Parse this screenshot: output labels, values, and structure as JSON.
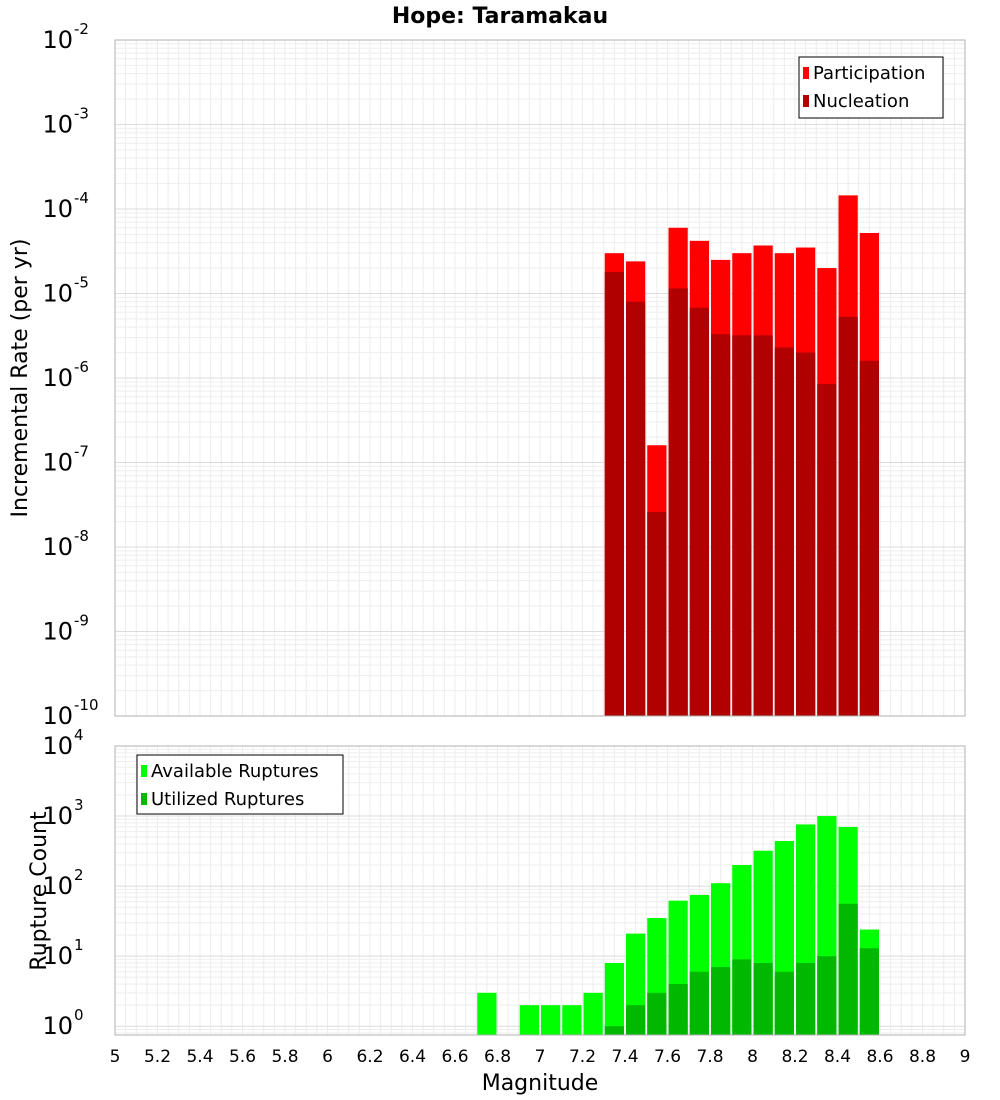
{
  "chart_data": [
    {
      "type": "bar",
      "title": "Hope: Taramakau",
      "xlabel": "",
      "ylabel": "Incremental Rate (per yr)",
      "yscale": "log",
      "xlim": [
        5,
        9
      ],
      "ylim": [
        1e-10,
        0.01
      ],
      "y_ticks": [
        {
          "base": "10",
          "exp": "-10"
        },
        {
          "base": "10",
          "exp": "-9"
        },
        {
          "base": "10",
          "exp": "-8"
        },
        {
          "base": "10",
          "exp": "-7"
        },
        {
          "base": "10",
          "exp": "-6"
        },
        {
          "base": "10",
          "exp": "-5"
        },
        {
          "base": "10",
          "exp": "-4"
        },
        {
          "base": "10",
          "exp": "-3"
        },
        {
          "base": "10",
          "exp": "-2"
        }
      ],
      "legend_position": "top-right",
      "grid": true,
      "x": [
        7.35,
        7.45,
        7.55,
        7.65,
        7.75,
        7.85,
        7.95,
        8.05,
        8.15,
        8.25,
        8.35,
        8.45,
        8.55
      ],
      "series": [
        {
          "name": "Participation",
          "color": "#ff0000",
          "values": [
            3e-05,
            2.4e-05,
            1.6e-07,
            6e-05,
            4.2e-05,
            2.5e-05,
            3e-05,
            3.7e-05,
            3e-05,
            3.5e-05,
            2e-05,
            0.000145,
            5.2e-05
          ]
        },
        {
          "name": "Nucleation",
          "color": "#b00000",
          "values": [
            1.8e-05,
            8e-06,
            2.6e-08,
            1.15e-05,
            6.8e-06,
            3.3e-06,
            3.2e-06,
            3.2e-06,
            2.3e-06,
            2e-06,
            8.5e-07,
            5.3e-06,
            1.6e-06
          ]
        }
      ]
    },
    {
      "type": "bar",
      "title": "",
      "xlabel": "Magnitude",
      "ylabel": "Rupture Count",
      "yscale": "log",
      "xlim": [
        5,
        9
      ],
      "ylim": [
        0.75,
        10000
      ],
      "x_tick_labels": [
        "5",
        "5.2",
        "5.4",
        "5.6",
        "5.8",
        "6",
        "6.2",
        "6.4",
        "6.6",
        "6.8",
        "7",
        "7.2",
        "7.4",
        "7.6",
        "7.8",
        "8",
        "8.2",
        "8.4",
        "8.6",
        "8.8",
        "9"
      ],
      "y_ticks": [
        {
          "base": "10",
          "exp": "0"
        },
        {
          "base": "10",
          "exp": "1"
        },
        {
          "base": "10",
          "exp": "2"
        },
        {
          "base": "10",
          "exp": "3"
        },
        {
          "base": "10",
          "exp": "4"
        }
      ],
      "legend_position": "top-left",
      "grid": true,
      "x": [
        6.75,
        6.95,
        7.05,
        7.15,
        7.25,
        7.35,
        7.45,
        7.55,
        7.65,
        7.75,
        7.85,
        7.95,
        8.05,
        8.15,
        8.25,
        8.35,
        8.45,
        8.55
      ],
      "series": [
        {
          "name": "Available Ruptures",
          "color": "#00ff00",
          "values": [
            3,
            2,
            2,
            2,
            3,
            8,
            21,
            35,
            62,
            75,
            110,
            200,
            320,
            440,
            760,
            1000,
            700,
            24
          ]
        },
        {
          "name": "Utilized Ruptures",
          "color": "#00b800",
          "values": [
            null,
            null,
            null,
            null,
            null,
            1,
            2,
            3,
            4,
            6,
            7,
            9,
            8,
            6,
            8,
            10,
            56,
            13
          ]
        }
      ]
    }
  ]
}
